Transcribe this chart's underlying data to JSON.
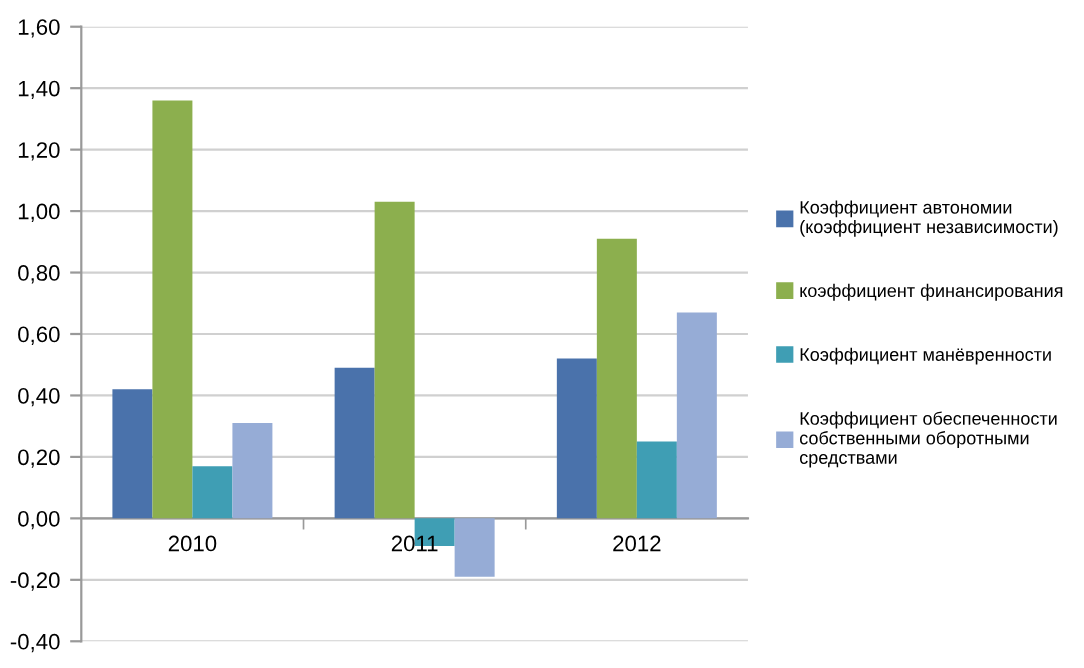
{
  "chart_data": {
    "type": "bar",
    "categories": [
      "2010",
      "2011",
      "2012"
    ],
    "series": [
      {
        "name": "Коэффициент автономии (коэффициент независимости)",
        "color": "#4a72ab",
        "values": [
          0.42,
          0.49,
          0.52
        ]
      },
      {
        "name": "коэффициент финансирования",
        "color": "#8caf4e",
        "values": [
          1.36,
          1.03,
          0.91
        ]
      },
      {
        "name": "Коэффициент манёвренности",
        "color": "#3f9eb4",
        "values": [
          0.17,
          -0.09,
          0.25
        ]
      },
      {
        "name": "Коэффициент обеспеченности собственными оборотными средствами",
        "color": "#96acd6",
        "values": [
          0.31,
          -0.19,
          0.67
        ]
      }
    ],
    "ylim": [
      -0.4,
      1.6
    ],
    "yticks": [
      {
        "value": -0.4,
        "label": "-0,40"
      },
      {
        "value": -0.2,
        "label": "-0,20"
      },
      {
        "value": 0,
        "label": "0,00"
      },
      {
        "value": 0.2,
        "label": "0,20"
      },
      {
        "value": 0.4,
        "label": "0,40"
      },
      {
        "value": 0.6,
        "label": "0,60"
      },
      {
        "value": 0.8,
        "label": "0,80"
      },
      {
        "value": 1.0,
        "label": "1,00"
      },
      {
        "value": 1.2,
        "label": "1,20"
      },
      {
        "value": 1.4,
        "label": "1,40"
      },
      {
        "value": 1.6,
        "label": "1,60"
      }
    ],
    "grid": "y",
    "legend": "right"
  }
}
